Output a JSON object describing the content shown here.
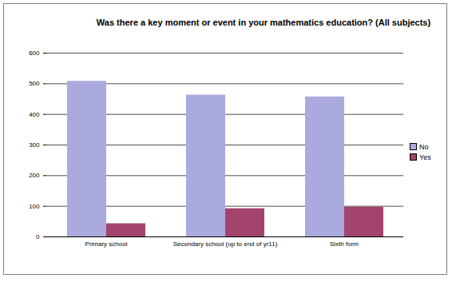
{
  "chart_data": {
    "type": "bar",
    "title": "Was there a key moment or event in your mathematics education? (All subjects)",
    "categories": [
      "Primary school",
      "Secondary school (up to end of yr11)",
      "Sixth form"
    ],
    "series": [
      {
        "name": "No",
        "color": "#aaaadf",
        "values": [
          508,
          463,
          457
        ]
      },
      {
        "name": "Yes",
        "color": "#a3446f",
        "values": [
          43,
          92,
          97
        ]
      }
    ],
    "ylim": [
      0,
      600
    ],
    "yticks": [
      0,
      100,
      200,
      300,
      400,
      500,
      600
    ],
    "grid": true,
    "legend": "right"
  }
}
